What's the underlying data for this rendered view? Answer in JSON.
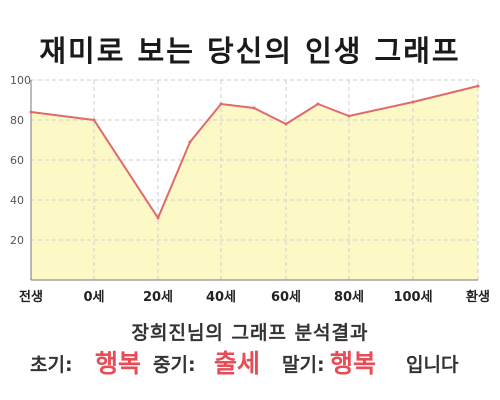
{
  "chart_data": {
    "type": "area",
    "title": "재미로 보는 당신의 인생 그래프",
    "x_labels": [
      "전생",
      "0세",
      "20세",
      "40세",
      "60세",
      "80세",
      "100세",
      "환생"
    ],
    "points": [
      {
        "x": "전생",
        "y": 84
      },
      {
        "x": "0세",
        "y": 80
      },
      {
        "x": "20세",
        "y": 31
      },
      {
        "x": "30세",
        "y": 69
      },
      {
        "x": "40세",
        "y": 88
      },
      {
        "x": "50세",
        "y": 86
      },
      {
        "x": "60세",
        "y": 78
      },
      {
        "x": "70세",
        "y": 88
      },
      {
        "x": "80세",
        "y": 82
      },
      {
        "x": "100세",
        "y": 89
      },
      {
        "x": "환생",
        "y": 97
      }
    ],
    "y_ticks": [
      20,
      40,
      60,
      80,
      100
    ],
    "ylim": [
      0,
      100
    ],
    "grid": true,
    "colors": {
      "line": "#e06a6a",
      "fill": "#fdf9c7",
      "grid": "#cfcfcf"
    }
  },
  "caption": "장희진님의 그래프 분석결과",
  "result": {
    "early_label": "초기:",
    "early_value": "행복",
    "middle_label": "중기:",
    "middle_value": "출세",
    "late_label": "말기:",
    "late_value": "행복",
    "ending": "입니다"
  }
}
